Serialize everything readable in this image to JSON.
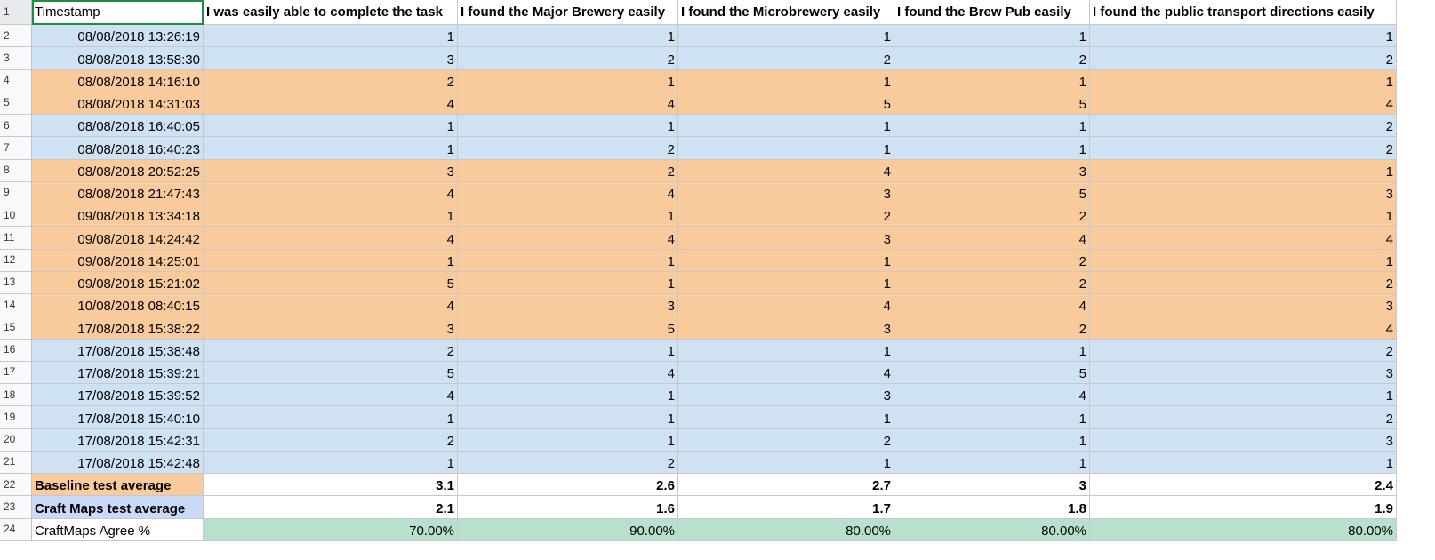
{
  "headers": [
    "Timestamp",
    "I was easily able to complete the task",
    "I found the Major Brewery easily",
    "I found the Microbrewery easily",
    "I found the Brew Pub easily",
    "I found the public transport directions easily"
  ],
  "rows": [
    {
      "n": "2",
      "group": "blue",
      "ts": "08/08/2018 13:26:19",
      "v": [
        "1",
        "1",
        "1",
        "1",
        "1"
      ]
    },
    {
      "n": "3",
      "group": "blue",
      "ts": "08/08/2018 13:58:30",
      "v": [
        "3",
        "2",
        "2",
        "2",
        "2"
      ]
    },
    {
      "n": "4",
      "group": "orange",
      "ts": "08/08/2018 14:16:10",
      "v": [
        "2",
        "1",
        "1",
        "1",
        "1"
      ]
    },
    {
      "n": "5",
      "group": "orange",
      "ts": "08/08/2018 14:31:03",
      "v": [
        "4",
        "4",
        "5",
        "5",
        "4"
      ]
    },
    {
      "n": "6",
      "group": "blue",
      "ts": "08/08/2018 16:40:05",
      "v": [
        "1",
        "1",
        "1",
        "1",
        "2"
      ]
    },
    {
      "n": "7",
      "group": "blue",
      "ts": "08/08/2018 16:40:23",
      "v": [
        "1",
        "2",
        "1",
        "1",
        "2"
      ]
    },
    {
      "n": "8",
      "group": "orange",
      "ts": "08/08/2018 20:52:25",
      "v": [
        "3",
        "2",
        "4",
        "3",
        "1"
      ]
    },
    {
      "n": "9",
      "group": "orange",
      "ts": "08/08/2018 21:47:43",
      "v": [
        "4",
        "4",
        "3",
        "5",
        "3"
      ]
    },
    {
      "n": "10",
      "group": "orange",
      "ts": "09/08/2018 13:34:18",
      "v": [
        "1",
        "1",
        "2",
        "2",
        "1"
      ]
    },
    {
      "n": "11",
      "group": "orange",
      "ts": "09/08/2018 14:24:42",
      "v": [
        "4",
        "4",
        "3",
        "4",
        "4"
      ]
    },
    {
      "n": "12",
      "group": "orange",
      "ts": "09/08/2018 14:25:01",
      "v": [
        "1",
        "1",
        "1",
        "2",
        "1"
      ]
    },
    {
      "n": "13",
      "group": "orange",
      "ts": "09/08/2018 15:21:02",
      "v": [
        "5",
        "1",
        "1",
        "2",
        "2"
      ]
    },
    {
      "n": "14",
      "group": "orange",
      "ts": "10/08/2018 08:40:15",
      "v": [
        "4",
        "3",
        "4",
        "4",
        "3"
      ]
    },
    {
      "n": "15",
      "group": "orange",
      "ts": "17/08/2018 15:38:22",
      "v": [
        "3",
        "5",
        "3",
        "2",
        "4"
      ]
    },
    {
      "n": "16",
      "group": "blue",
      "ts": "17/08/2018 15:38:48",
      "v": [
        "2",
        "1",
        "1",
        "1",
        "2"
      ]
    },
    {
      "n": "17",
      "group": "blue",
      "ts": "17/08/2018 15:39:21",
      "v": [
        "5",
        "4",
        "4",
        "5",
        "3"
      ]
    },
    {
      "n": "18",
      "group": "blue",
      "ts": "17/08/2018 15:39:52",
      "v": [
        "4",
        "1",
        "3",
        "4",
        "1"
      ]
    },
    {
      "n": "19",
      "group": "blue",
      "ts": "17/08/2018 15:40:10",
      "v": [
        "1",
        "1",
        "1",
        "1",
        "2"
      ]
    },
    {
      "n": "20",
      "group": "blue",
      "ts": "17/08/2018 15:42:31",
      "v": [
        "2",
        "1",
        "2",
        "1",
        "3"
      ]
    },
    {
      "n": "21",
      "group": "blue",
      "ts": "17/08/2018 15:42:48",
      "v": [
        "1",
        "2",
        "1",
        "1",
        "1"
      ]
    }
  ],
  "summary": [
    {
      "n": "22",
      "label": "Baseline test average",
      "style": "lbl-orange",
      "valStyle": "white bold",
      "v": [
        "3.1",
        "2.6",
        "2.7",
        "3",
        "2.4"
      ]
    },
    {
      "n": "23",
      "label": "Craft Maps test average",
      "style": "lbl-blue",
      "valStyle": "white bold",
      "v": [
        "2.1",
        "1.6",
        "1.7",
        "1.8",
        "1.9"
      ]
    },
    {
      "n": "24",
      "label": "CraftMaps Agree %",
      "style": "white",
      "valStyle": "green",
      "v": [
        "70.00%",
        "90.00%",
        "80.00%",
        "80.00%",
        "80.00%"
      ]
    }
  ],
  "header_row_number": "1",
  "colors": {
    "blue": "#cfe2f3",
    "orange": "#f9cb9c",
    "green": "#b7e1cd",
    "label_blue": "#c9daf8"
  }
}
